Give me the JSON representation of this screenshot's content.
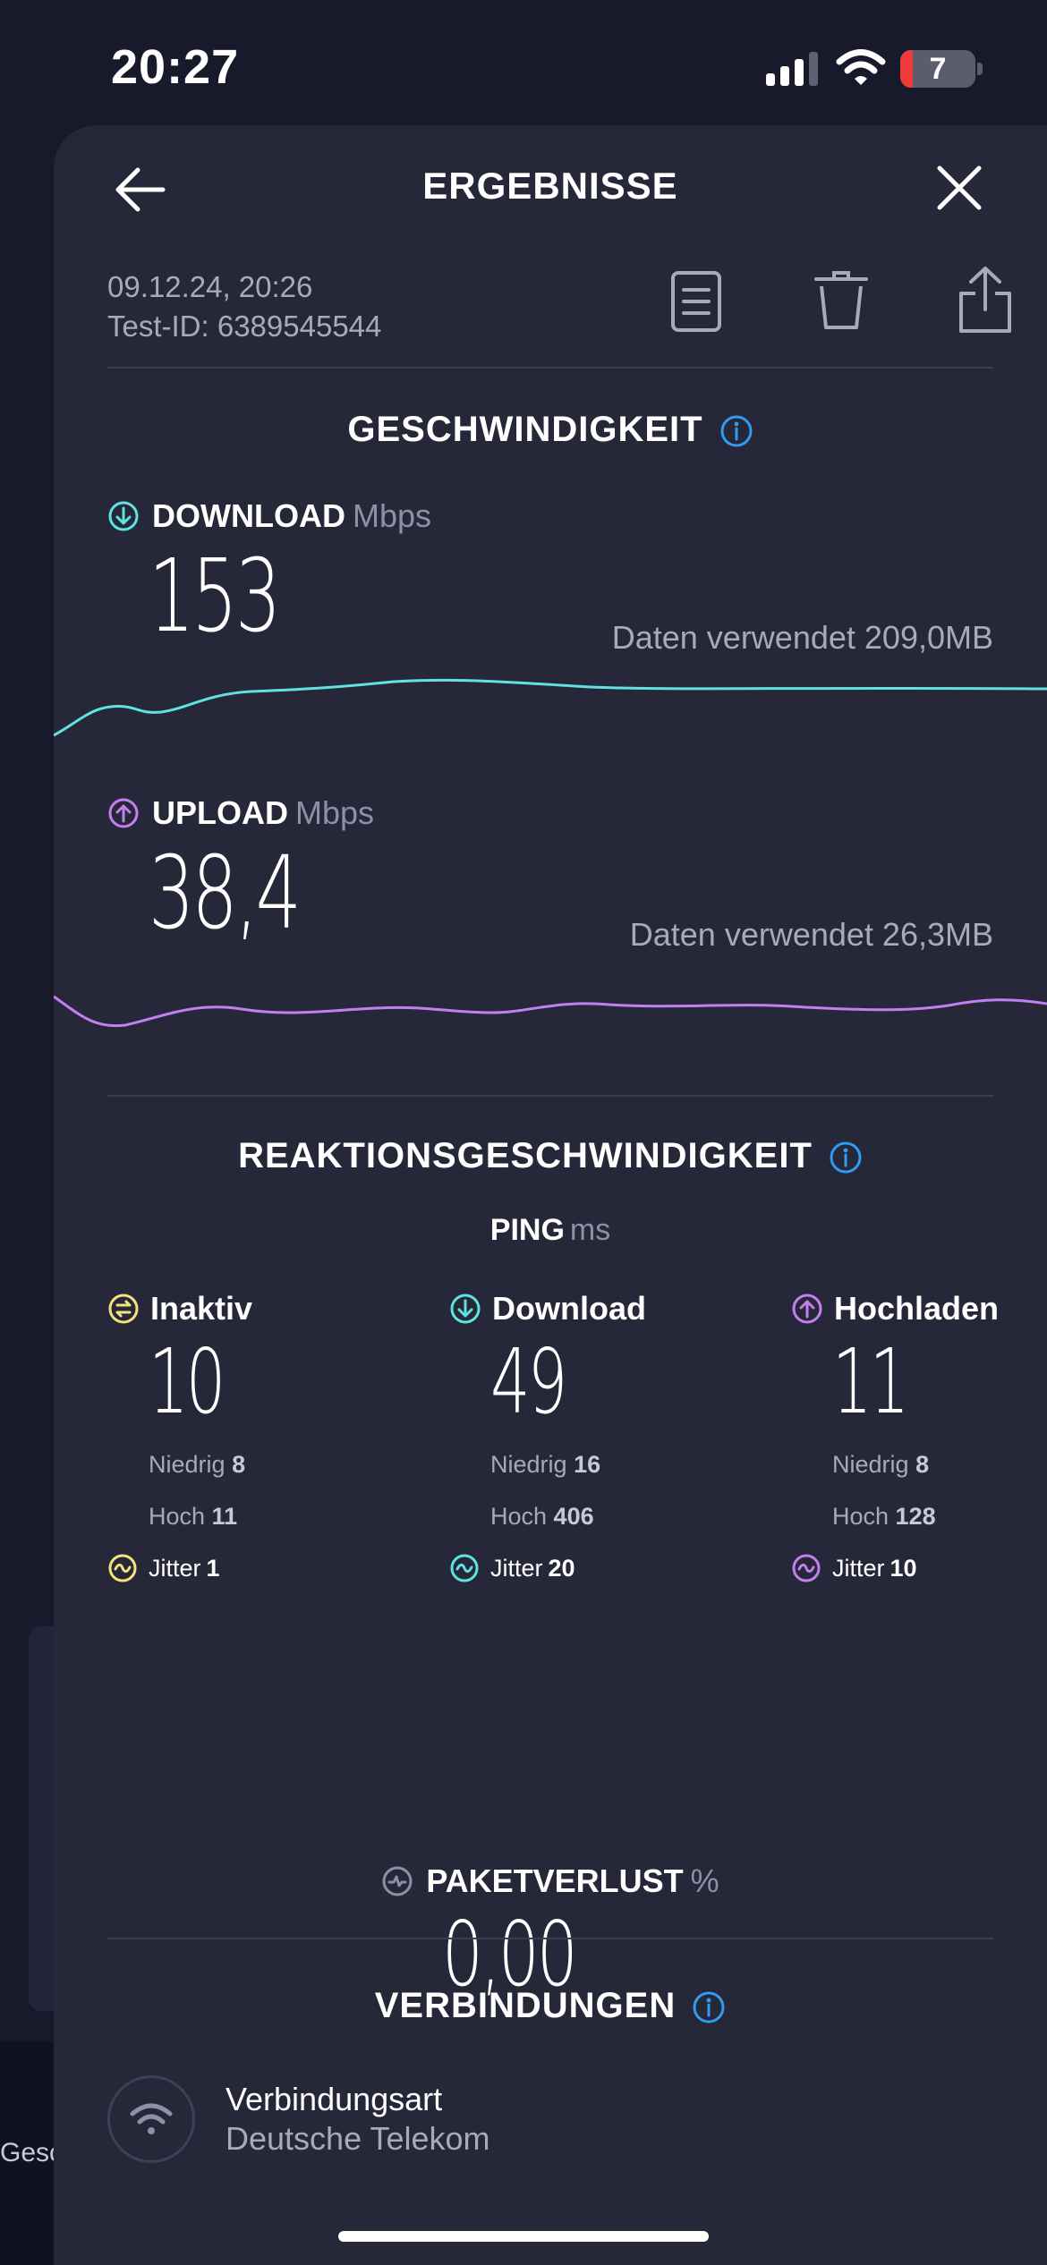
{
  "status_bar": {
    "time": "20:27",
    "battery": "7"
  },
  "background": {
    "footer_text": "Gesc"
  },
  "header": {
    "title": "ERGEBNISSE"
  },
  "meta": {
    "datetime": "09.12.24, 20:26",
    "test_id": "Test-ID: 6389545544"
  },
  "speed": {
    "title": "GESCHWINDIGKEIT",
    "download": {
      "label": "DOWNLOAD",
      "unit": "Mbps",
      "value": "153",
      "data_used": "Daten verwendet 209,0MB",
      "color": "#5ee3e0"
    },
    "upload": {
      "label": "UPLOAD",
      "unit": "Mbps",
      "value": "38,4",
      "data_used": "Daten verwendet 26,3MB",
      "color": "#c27ff0"
    }
  },
  "responsiveness": {
    "title": "REAKTIONSGESCHWINDIGKEIT",
    "ping_label": "PING",
    "ping_unit": "ms",
    "columns": [
      {
        "name": "Inaktiv",
        "value": "10",
        "low_label": "Niedrig",
        "low": "8",
        "high_label": "Hoch",
        "high": "11",
        "jitter_label": "Jitter",
        "jitter": "1",
        "color": "#f4e27a"
      },
      {
        "name": "Download",
        "value": "49",
        "low_label": "Niedrig",
        "low": "16",
        "high_label": "Hoch",
        "high": "406",
        "jitter_label": "Jitter",
        "jitter": "20",
        "color": "#5ee3e0"
      },
      {
        "name": "Hochladen",
        "value": "11",
        "low_label": "Niedrig",
        "low": "8",
        "high_label": "Hoch",
        "high": "128",
        "jitter_label": "Jitter",
        "jitter": "10",
        "color": "#c27ff0"
      }
    ]
  },
  "packet_loss": {
    "label": "PAKETVERLUST",
    "unit": "%",
    "value": "0,00"
  },
  "connections": {
    "title": "VERBINDUNGEN",
    "type_label": "Verbindungsart",
    "provider": "Deutsche Telekom"
  },
  "colors": {
    "accent_info": "#2f9cf0",
    "background": "#181a2c",
    "sheet": "#262839"
  }
}
